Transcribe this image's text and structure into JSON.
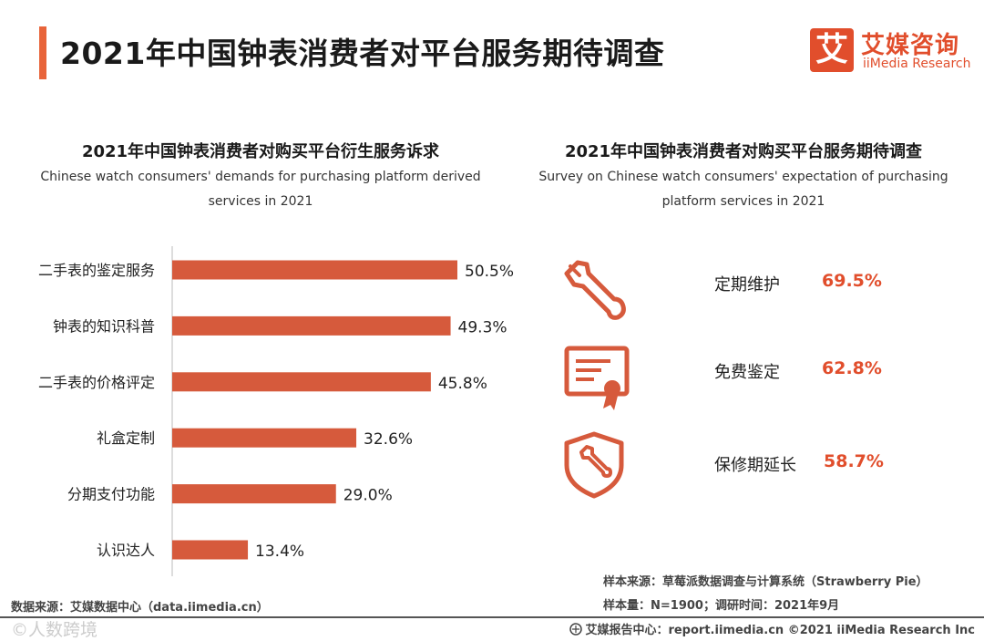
{
  "header": {
    "title": "2021年中国钟表消费者对平台服务期待调查",
    "logo_mark": "艾",
    "logo_cn": "艾媒咨询",
    "logo_en": "iiMedia Research"
  },
  "left_chart": {
    "title_cn": "2021年中国钟表消费者对购买平台衍生服务诉求",
    "title_en_line1": "Chinese watch consumers' demands for purchasing platform derived",
    "title_en_line2": "services in 2021"
  },
  "right_panel": {
    "title_cn": "2021年中国钟表消费者对购买平台服务期待调查",
    "title_en_line1": "Survey on Chinese watch consumers' expectation of purchasing",
    "title_en_line2": "platform services in 2021",
    "items": [
      {
        "label": "定期维护",
        "value": "69.5%",
        "icon": "wrench-icon"
      },
      {
        "label": "免费鉴定",
        "value": "62.8%",
        "icon": "certificate-icon"
      },
      {
        "label": "保修期延长",
        "value": "58.7%",
        "icon": "shield-wrench-icon"
      }
    ]
  },
  "chart_data": {
    "type": "bar",
    "orientation": "horizontal",
    "title": "2021年中国钟表消费者对购买平台衍生服务诉求",
    "categories": [
      "二手表的鉴定服务",
      "钟表的知识科普",
      "二手表的价格评定",
      "礼盒定制",
      "分期支付功能",
      "认识达人"
    ],
    "values": [
      50.5,
      49.3,
      45.8,
      32.6,
      29.0,
      13.4
    ],
    "value_labels": [
      "50.5%",
      "49.3%",
      "45.8%",
      "32.6%",
      "29.0%",
      "13.4%"
    ],
    "xlim": [
      0,
      60
    ],
    "unit": "%",
    "color": "#d65a3c"
  },
  "notes": {
    "sample_source": "样本来源：草莓派数据调查与计算系统（Strawberry Pie）",
    "sample_size": "样本量：N=1900；调研时间：2021年9月",
    "data_source": "数据来源：艾媒数据中心（data.iimedia.cn）",
    "watermark": "©人数跨境",
    "footer": "艾媒报告中心：report.iimedia.cn ©2021 iiMedia Research Inc"
  },
  "colors": {
    "accent": "#e8643a",
    "brand": "#e14e2c",
    "bar": "#d65a3c"
  }
}
